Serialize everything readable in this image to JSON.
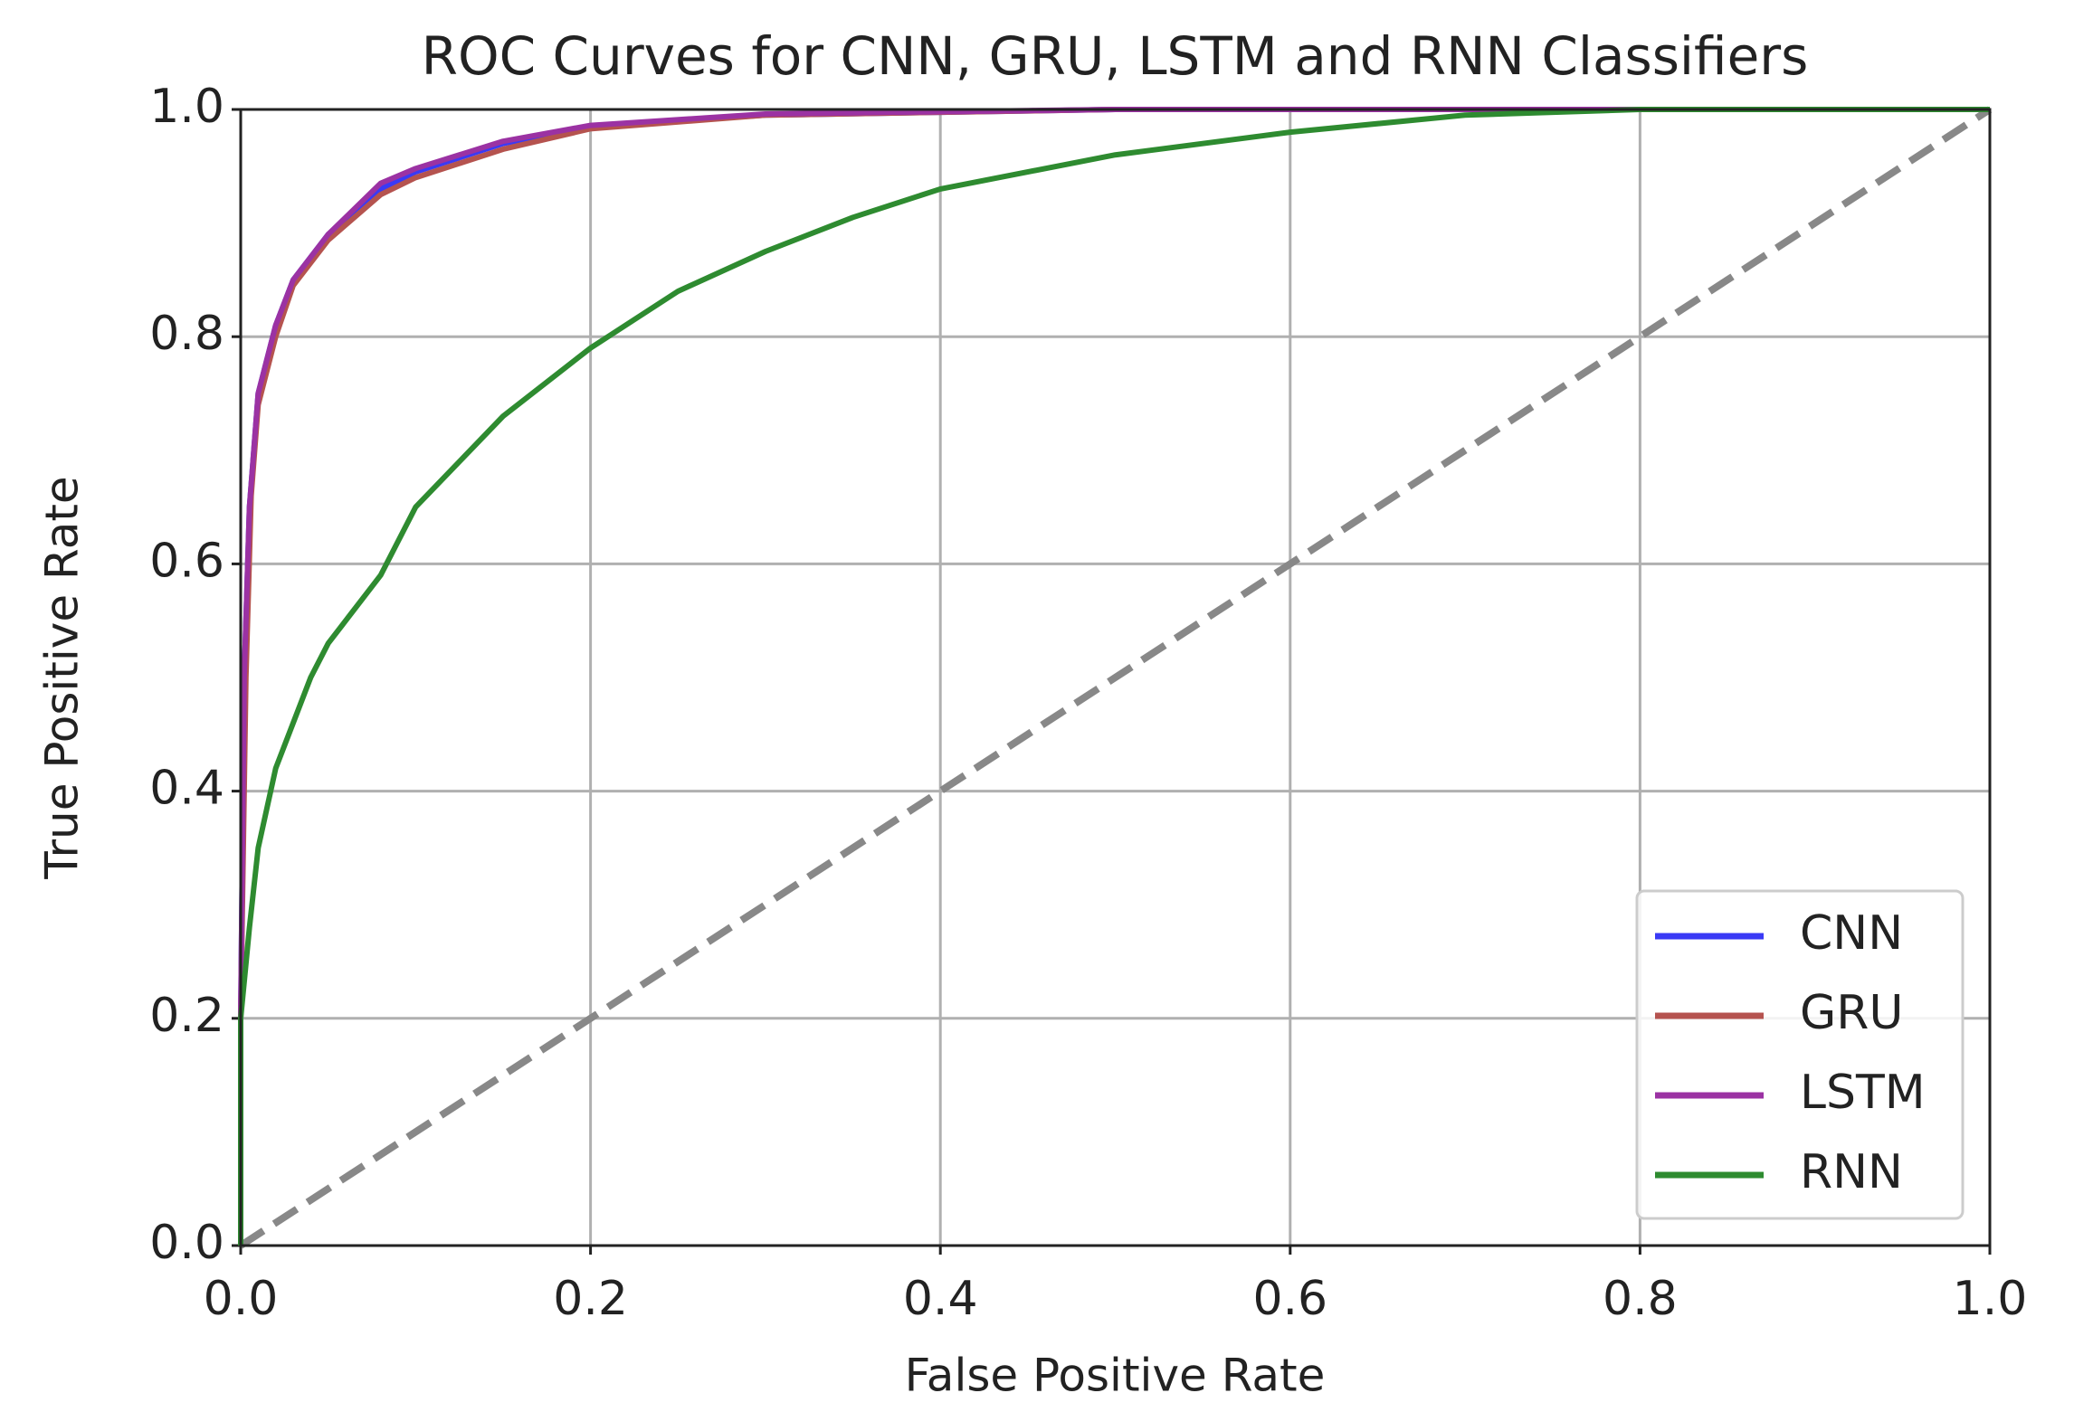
{
  "chart_data": {
    "type": "line",
    "title": "ROC Curves for CNN, GRU, LSTM and RNN Classifiers",
    "x_label": "False Positive Rate",
    "y_label": "True Positive Rate",
    "xlim": [
      0,
      1
    ],
    "ylim": [
      0,
      1
    ],
    "xticks": [
      {
        "value": 0,
        "label": "0.0"
      },
      0.2,
      0.4,
      0.6,
      0.8,
      {
        "value": 1,
        "label": "1.0"
      }
    ],
    "yticks": [
      {
        "value": 0,
        "label": "0.0"
      },
      0.2,
      0.4,
      0.6,
      0.8,
      {
        "value": 1,
        "label": "1.0"
      }
    ],
    "grid": true,
    "legend": "lower right",
    "diagonal": {
      "x": [
        0,
        1
      ],
      "values": [
        0,
        1
      ],
      "color": "#888888"
    },
    "series": [
      {
        "name": "CNN",
        "color": "#3a3af5",
        "x": [
          0,
          0,
          0.002,
          0.005,
          0.01,
          0.02,
          0.03,
          0.05,
          0.08,
          0.1,
          0.15,
          0.2,
          0.3,
          0.5,
          1
        ],
        "values": [
          0,
          0.2,
          0.5,
          0.65,
          0.75,
          0.81,
          0.85,
          0.89,
          0.93,
          0.945,
          0.97,
          0.985,
          0.995,
          1,
          1
        ]
      },
      {
        "name": "GRU",
        "color": "#b5534f",
        "x": [
          0,
          0,
          0.003,
          0.006,
          0.01,
          0.02,
          0.03,
          0.05,
          0.08,
          0.1,
          0.15,
          0.2,
          0.3,
          0.5,
          1
        ],
        "values": [
          0,
          0.2,
          0.5,
          0.66,
          0.74,
          0.8,
          0.845,
          0.885,
          0.925,
          0.94,
          0.965,
          0.983,
          0.995,
          1,
          1
        ]
      },
      {
        "name": "LSTM",
        "color": "#9b32a3",
        "x": [
          0,
          0,
          0.002,
          0.005,
          0.01,
          0.02,
          0.03,
          0.05,
          0.08,
          0.1,
          0.15,
          0.2,
          0.3,
          0.5,
          1
        ],
        "values": [
          0,
          0.2,
          0.5,
          0.65,
          0.75,
          0.81,
          0.85,
          0.89,
          0.935,
          0.948,
          0.972,
          0.986,
          0.996,
          1,
          1
        ]
      },
      {
        "name": "RNN",
        "color": "#2e8b30",
        "x": [
          0,
          0,
          0.005,
          0.01,
          0.02,
          0.03,
          0.04,
          0.05,
          0.07,
          0.08,
          0.1,
          0.15,
          0.2,
          0.22,
          0.25,
          0.3,
          0.35,
          0.4,
          0.5,
          0.6,
          0.7,
          0.8,
          1
        ],
        "values": [
          0,
          0.2,
          0.28,
          0.35,
          0.42,
          0.46,
          0.5,
          0.53,
          0.57,
          0.59,
          0.65,
          0.73,
          0.79,
          0.81,
          0.84,
          0.875,
          0.905,
          0.93,
          0.96,
          0.98,
          0.995,
          1,
          1
        ]
      }
    ]
  }
}
